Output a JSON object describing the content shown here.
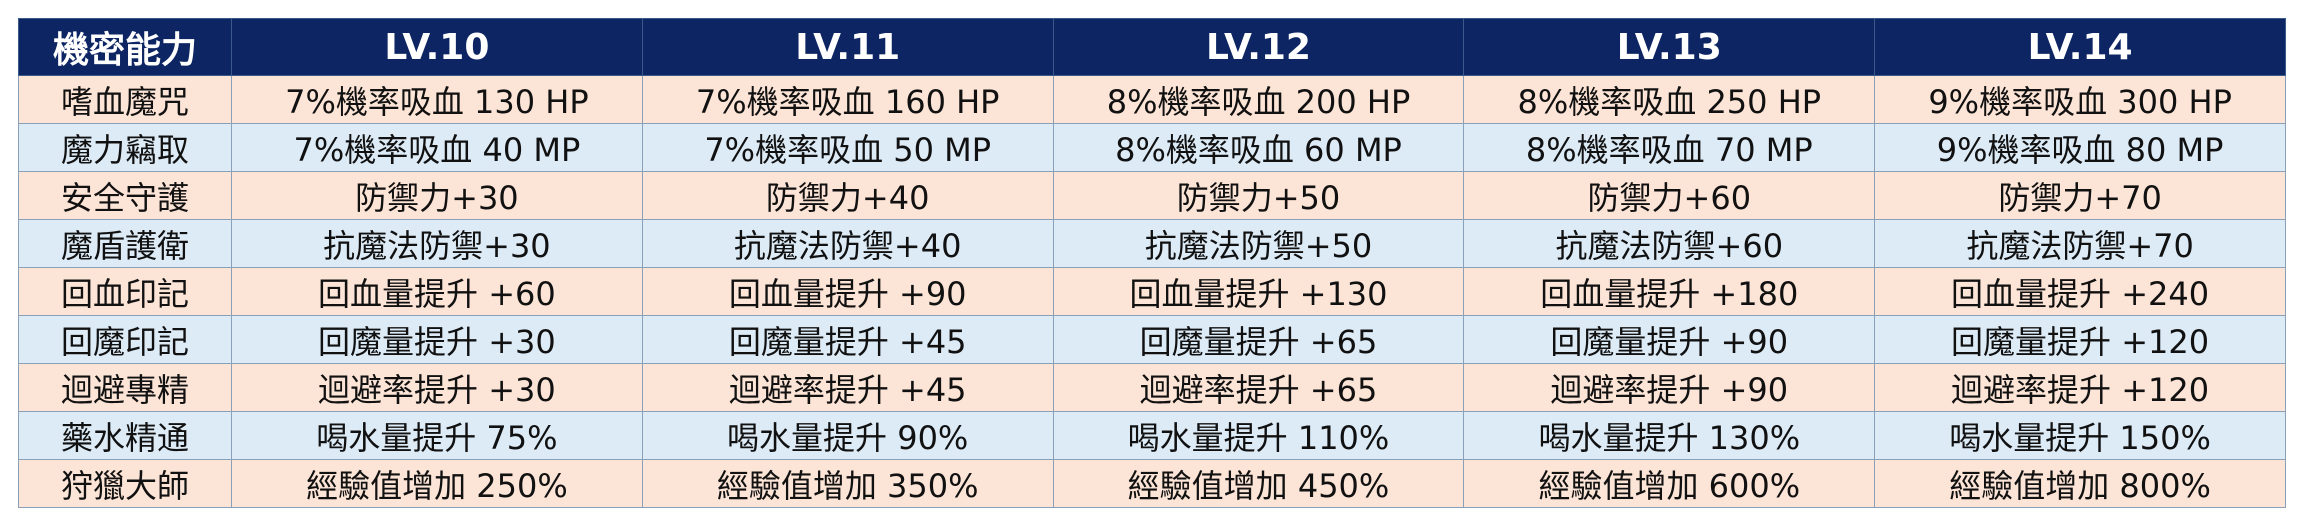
{
  "table": {
    "header": [
      "機密能力",
      "LV.10",
      "LV.11",
      "LV.12",
      "LV.13",
      "LV.14"
    ],
    "rows": [
      [
        "嗜血魔咒",
        "7%機率吸血 130 HP",
        "7%機率吸血 160 HP",
        "8%機率吸血 200 HP",
        "8%機率吸血 250 HP",
        "9%機率吸血 300 HP"
      ],
      [
        "魔力竊取",
        "7%機率吸血 40 MP",
        "7%機率吸血 50 MP",
        "8%機率吸血 60 MP",
        "8%機率吸血 70 MP",
        "9%機率吸血 80 MP"
      ],
      [
        "安全守護",
        "防禦力+30",
        "防禦力+40",
        "防禦力+50",
        "防禦力+60",
        "防禦力+70"
      ],
      [
        "魔盾護衛",
        "抗魔法防禦+30",
        "抗魔法防禦+40",
        "抗魔法防禦+50",
        "抗魔法防禦+60",
        "抗魔法防禦+70"
      ],
      [
        "回血印記",
        "回血量提升 +60",
        "回血量提升 +90",
        "回血量提升 +130",
        "回血量提升 +180",
        "回血量提升 +240"
      ],
      [
        "回魔印記",
        "回魔量提升 +30",
        "回魔量提升 +45",
        "回魔量提升 +65",
        "回魔量提升 +90",
        "回魔量提升 +120"
      ],
      [
        "迴避專精",
        "迴避率提升 +30",
        "迴避率提升 +45",
        "迴避率提升 +65",
        "迴避率提升 +90",
        "迴避率提升 +120"
      ],
      [
        "藥水精通",
        "喝水量提升 75%",
        "喝水量提升 90%",
        "喝水量提升 110%",
        "喝水量提升 130%",
        "喝水量提升 150%"
      ],
      [
        "狩獵大師",
        "經驗值增加 250%",
        "經驗值增加 350%",
        "經驗值增加 450%",
        "經驗值增加 600%",
        "經驗值增加 800%"
      ]
    ]
  }
}
